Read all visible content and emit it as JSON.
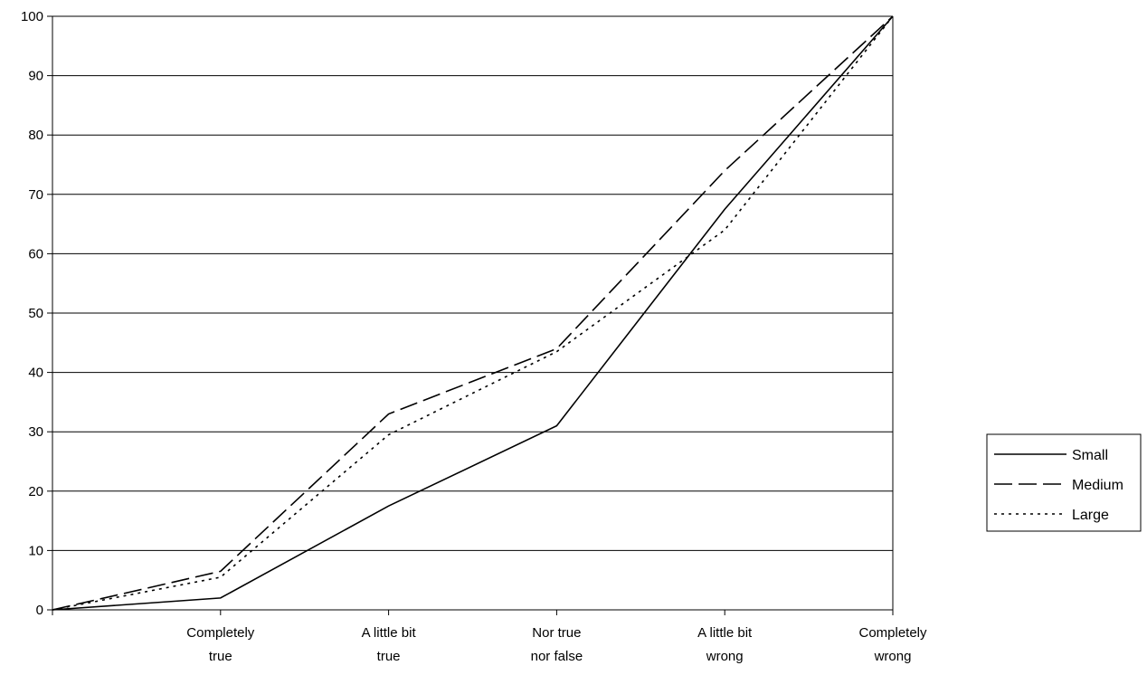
{
  "chart_data": {
    "type": "line",
    "categories": [
      "",
      "Completely true",
      "A little bit true",
      "Nor true nor false",
      "A little bit wrong",
      "Completely wrong"
    ],
    "category_lines": [
      [],
      [
        "Completely",
        "true"
      ],
      [
        "A little bit",
        "true"
      ],
      [
        "Nor true",
        "nor false"
      ],
      [
        "A little bit",
        "wrong"
      ],
      [
        "Completely",
        "wrong"
      ]
    ],
    "ylim": [
      0,
      100
    ],
    "yticks": [
      0,
      10,
      20,
      30,
      40,
      50,
      60,
      70,
      80,
      90,
      100
    ],
    "grid": true,
    "legend_position": "right",
    "series": [
      {
        "name": "Small",
        "style": "solid",
        "values": [
          0,
          2,
          17.5,
          31,
          67.5,
          100
        ]
      },
      {
        "name": "Medium",
        "style": "dashed",
        "values": [
          0,
          6.5,
          33,
          44,
          74,
          100
        ]
      },
      {
        "name": "Large",
        "style": "dotted",
        "values": [
          0,
          5.5,
          29.5,
          43.5,
          64,
          100
        ]
      }
    ]
  }
}
